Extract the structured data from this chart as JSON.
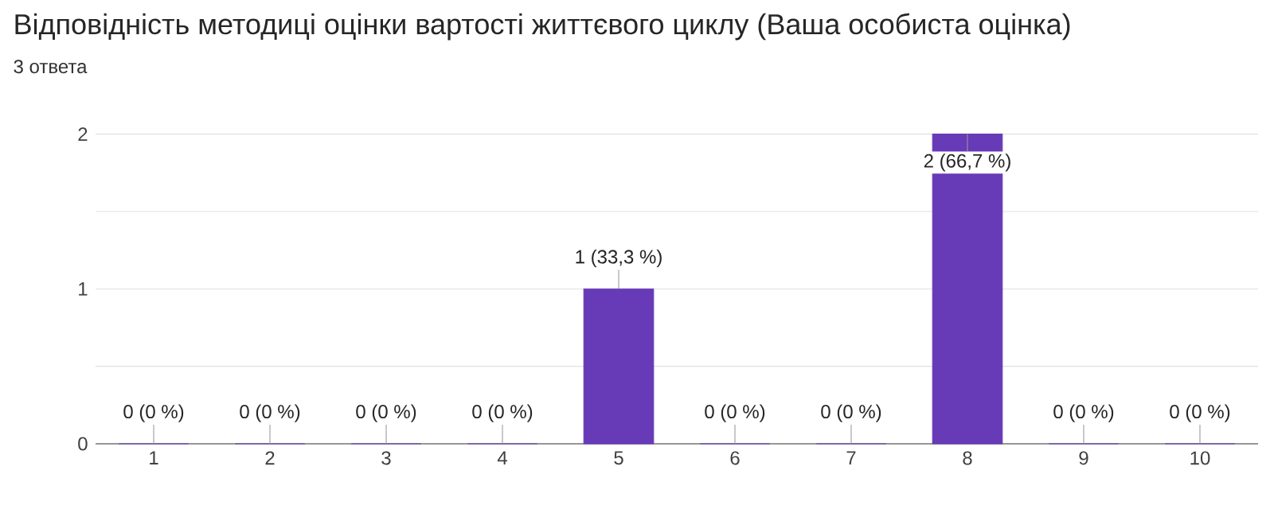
{
  "chart_data": {
    "type": "bar",
    "title": "Відповідність методиці оцінки вартості життєвого циклу (Ваша особиста оцінка)",
    "subtitle": "3 ответа",
    "categories": [
      "1",
      "2",
      "3",
      "4",
      "5",
      "6",
      "7",
      "8",
      "9",
      "10"
    ],
    "values": [
      0,
      0,
      0,
      0,
      1,
      0,
      0,
      2,
      0,
      0
    ],
    "value_labels": [
      "0 (0 %)",
      "0 (0 %)",
      "0 (0 %)",
      "0 (0 %)",
      "1 (33,3 %)",
      "0 (0 %)",
      "0 (0 %)",
      "2 (66,7 %)",
      "0 (0 %)",
      "0 (0 %)"
    ],
    "color": "#673ab7",
    "ylim": [
      0,
      2
    ],
    "yticks": [
      0,
      {
        "value": 0.5,
        "label": null
      },
      1,
      {
        "value": 1.5,
        "label": null
      },
      2
    ],
    "grid": "y"
  }
}
